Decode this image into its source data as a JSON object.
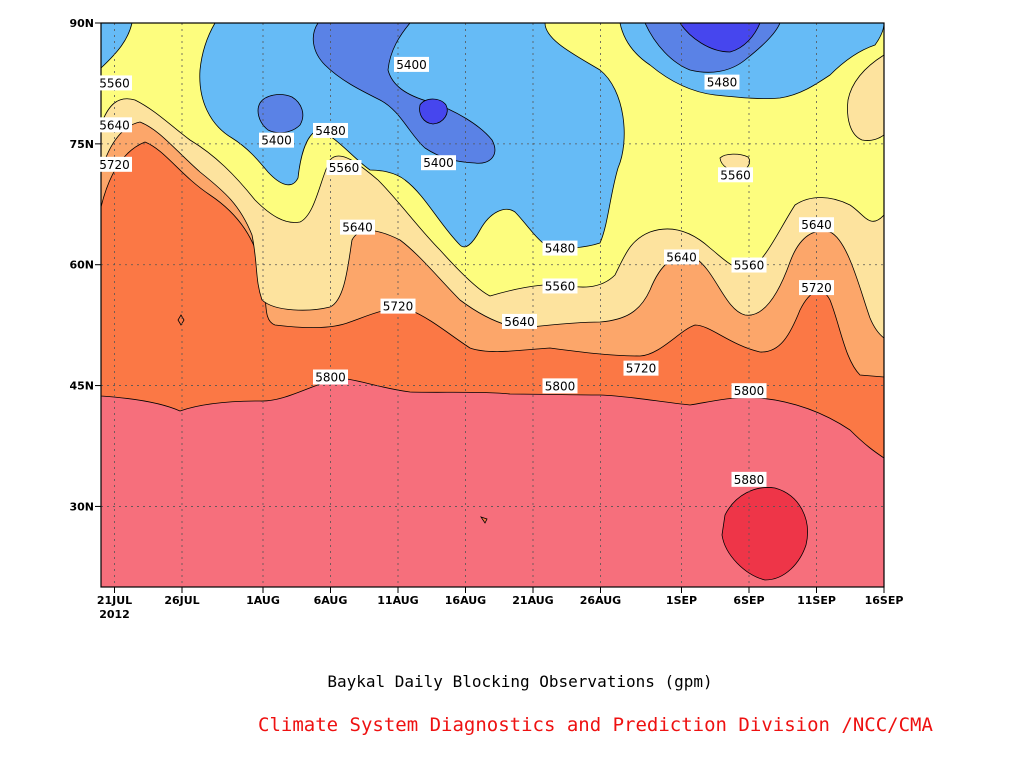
{
  "caption": "Baykal Daily Blocking Observations (gpm)",
  "credit": "Climate System Diagnostics and Prediction Division /NCC/CMA",
  "chart_data": {
    "type": "contour",
    "xlabel": "",
    "ylabel": "",
    "x_range": [
      "2012-07-20",
      "2012-09-16"
    ],
    "y_range": [
      20,
      90
    ],
    "x_ticks": [
      {
        "date": "2012-07-21",
        "label": "21JUL"
      },
      {
        "date": "2012-07-26",
        "label": "26JUL"
      },
      {
        "date": "2012-08-01",
        "label": "1AUG"
      },
      {
        "date": "2012-08-06",
        "label": "6AUG"
      },
      {
        "date": "2012-08-11",
        "label": "11AUG"
      },
      {
        "date": "2012-08-16",
        "label": "16AUG"
      },
      {
        "date": "2012-08-21",
        "label": "21AUG"
      },
      {
        "date": "2012-08-26",
        "label": "26AUG"
      },
      {
        "date": "2012-09-01",
        "label": "1SEP"
      },
      {
        "date": "2012-09-06",
        "label": "6SEP"
      },
      {
        "date": "2012-09-11",
        "label": "11SEP"
      },
      {
        "date": "2012-09-16",
        "label": "16SEP"
      }
    ],
    "x_year_label": "2012",
    "y_ticks": [
      {
        "value": 30,
        "label": "30N"
      },
      {
        "value": 45,
        "label": "45N"
      },
      {
        "value": 60,
        "label": "60N"
      },
      {
        "value": 75,
        "label": "75N"
      },
      {
        "value": 90,
        "label": "90N"
      }
    ],
    "grid": true,
    "contour_levels": [
      5400,
      5480,
      5560,
      5640,
      5720,
      5800,
      5880
    ],
    "fill_colors": {
      "below_5400": "#5a82e6",
      "5400_5480": "#66bbf6",
      "5480_5560": "#fdfd7e",
      "5560_5640": "#fde39e",
      "5640_5720": "#fca66a",
      "5720_5800": "#fb7845",
      "5800_5880": "#f66f7c",
      "above_5880": "#ee3548",
      "core_min": "#4646ee"
    },
    "contour_labels": [
      {
        "text": "5560",
        "date": "2012-07-21",
        "lat": 82.5
      },
      {
        "text": "5640",
        "date": "2012-07-21",
        "lat": 77.3
      },
      {
        "text": "5720",
        "date": "2012-07-21",
        "lat": 72.4
      },
      {
        "text": "5400",
        "date": "2012-08-02",
        "lat": 75.4
      },
      {
        "text": "5480",
        "date": "2012-08-06",
        "lat": 76.6
      },
      {
        "text": "5560",
        "date": "2012-08-07",
        "lat": 72.0
      },
      {
        "text": "5640",
        "date": "2012-08-08",
        "lat": 64.6
      },
      {
        "text": "5400",
        "date": "2012-08-12",
        "lat": 84.8
      },
      {
        "text": "5400",
        "date": "2012-08-14",
        "lat": 72.6
      },
      {
        "text": "5720",
        "date": "2012-08-11",
        "lat": 54.8
      },
      {
        "text": "5800",
        "date": "2012-08-06",
        "lat": 46.0
      },
      {
        "text": "5640",
        "date": "2012-08-20",
        "lat": 52.9
      },
      {
        "text": "5480",
        "date": "2012-08-23",
        "lat": 62.0
      },
      {
        "text": "5560",
        "date": "2012-08-23",
        "lat": 57.3
      },
      {
        "text": "5800",
        "date": "2012-08-23",
        "lat": 44.9
      },
      {
        "text": "5720",
        "date": "2012-08-29",
        "lat": 47.1
      },
      {
        "text": "5640",
        "date": "2012-09-01",
        "lat": 60.9
      },
      {
        "text": "5480",
        "date": "2012-09-04",
        "lat": 82.6
      },
      {
        "text": "5560",
        "date": "2012-09-05",
        "lat": 71.1
      },
      {
        "text": "5560",
        "date": "2012-09-06",
        "lat": 59.9
      },
      {
        "text": "5800",
        "date": "2012-09-06",
        "lat": 44.3
      },
      {
        "text": "5880",
        "date": "2012-09-06",
        "lat": 33.3
      },
      {
        "text": "5640",
        "date": "2012-09-11",
        "lat": 64.9
      },
      {
        "text": "5720",
        "date": "2012-09-11",
        "lat": 57.1
      }
    ]
  }
}
